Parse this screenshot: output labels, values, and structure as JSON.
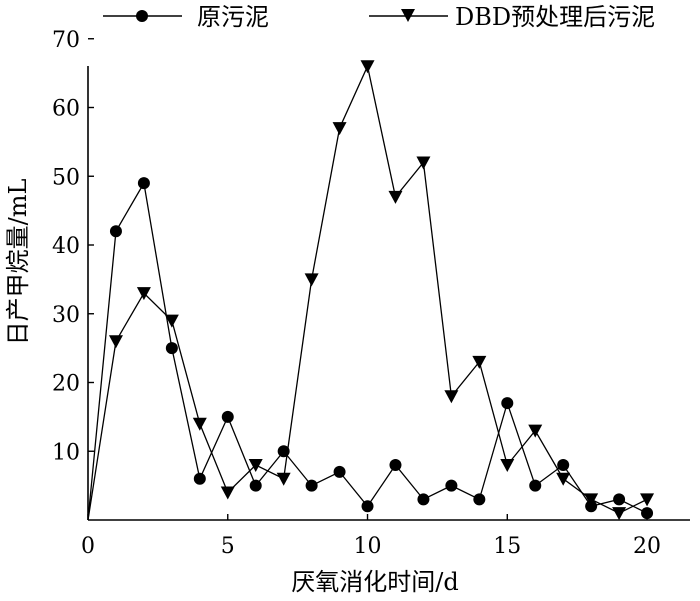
{
  "chart_data": {
    "type": "line",
    "title": "",
    "xlabel": "厌氧消化时间/d",
    "ylabel": "日产甲烷量/mL",
    "xlim": [
      0,
      21
    ],
    "ylim": [
      0,
      72
    ],
    "xticks": [
      0,
      5,
      10,
      15,
      20
    ],
    "yticks": [
      10,
      20,
      30,
      40,
      50,
      60,
      70
    ],
    "grid": false,
    "legend_position": "top",
    "x": [
      0,
      1,
      2,
      3,
      4,
      5,
      6,
      7,
      8,
      9,
      10,
      11,
      12,
      13,
      14,
      15,
      16,
      17,
      18,
      19,
      20
    ],
    "series": [
      {
        "name": "原污泥",
        "marker": "circle",
        "values": [
          0,
          42,
          49,
          25,
          6,
          15,
          5,
          10,
          5,
          7,
          2,
          8,
          3,
          5,
          3,
          17,
          5,
          8,
          2,
          3,
          1
        ]
      },
      {
        "name": "DBD预处理后污泥",
        "marker": "triangle-down",
        "values": [
          0,
          26,
          33,
          29,
          14,
          4,
          8,
          6,
          35,
          57,
          66,
          47,
          52,
          18,
          23,
          8,
          13,
          6,
          3,
          1,
          3
        ]
      }
    ],
    "colors": {
      "line": "#000000",
      "marker": "#000000",
      "background": "#ffffff"
    }
  }
}
